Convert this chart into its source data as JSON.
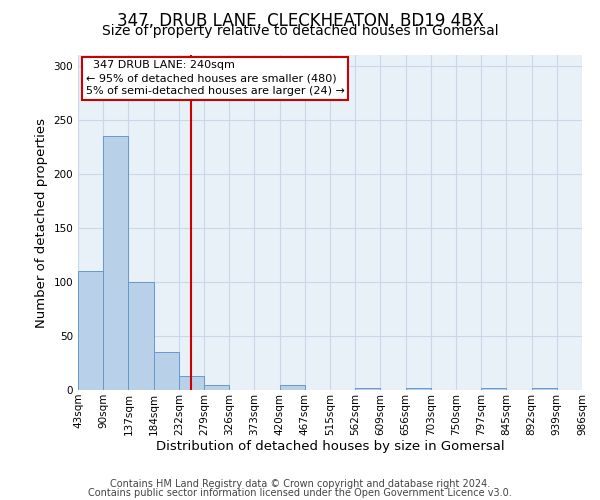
{
  "title": "347, DRUB LANE, CLECKHEATON, BD19 4BX",
  "subtitle": "Size of property relative to detached houses in Gomersal",
  "xlabel": "Distribution of detached houses by size in Gomersal",
  "ylabel": "Number of detached properties",
  "footer1": "Contains HM Land Registry data © Crown copyright and database right 2024.",
  "footer2": "Contains public sector information licensed under the Open Government Licence v3.0.",
  "bin_labels": [
    "43sqm",
    "90sqm",
    "137sqm",
    "184sqm",
    "232sqm",
    "279sqm",
    "326sqm",
    "373sqm",
    "420sqm",
    "467sqm",
    "515sqm",
    "562sqm",
    "609sqm",
    "656sqm",
    "703sqm",
    "750sqm",
    "797sqm",
    "845sqm",
    "892sqm",
    "939sqm",
    "986sqm"
  ],
  "bar_values": [
    110,
    235,
    100,
    35,
    13,
    5,
    0,
    0,
    5,
    0,
    0,
    2,
    0,
    2,
    0,
    0,
    2,
    0,
    2,
    0
  ],
  "bar_color": "#b8d0e8",
  "bar_edge_color": "#6699cc",
  "property_line_x": 4.5,
  "property_line_color": "#cc0000",
  "annotation_text": "  347 DRUB LANE: 240sqm\n← 95% of detached houses are smaller (480)\n5% of semi-detached houses are larger (24) →",
  "annotation_box_color": "#cc0000",
  "ylim": [
    0,
    310
  ],
  "yticks": [
    0,
    50,
    100,
    150,
    200,
    250,
    300
  ],
  "grid_color": "#c8d8e8",
  "background_color": "#e8f0f8",
  "title_fontsize": 12,
  "subtitle_fontsize": 10,
  "label_fontsize": 9.5,
  "tick_fontsize": 7.5,
  "footer_fontsize": 7
}
